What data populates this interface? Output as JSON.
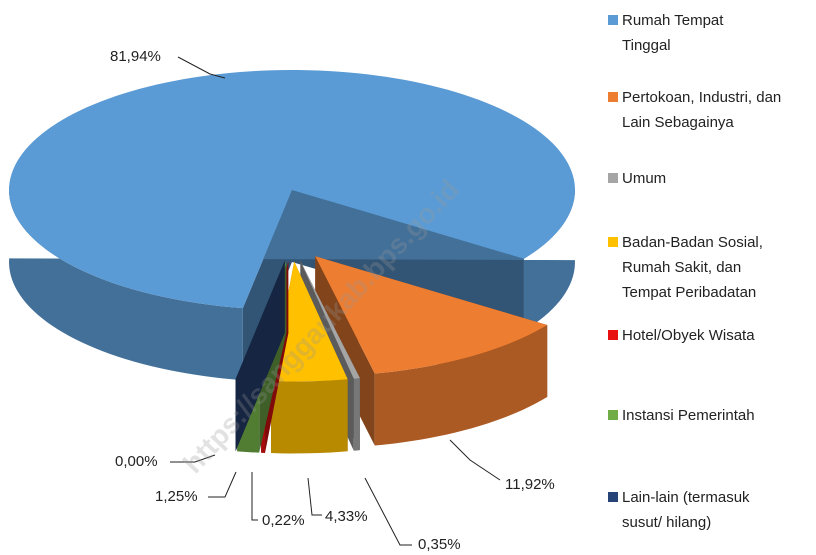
{
  "chart_data": {
    "type": "pie",
    "categories": [
      "Rumah Tempat Tinggal",
      "Pertokoan, Industri, dan Lain Sebagainya",
      "Umum",
      "Badan-Badan Sosial, Rumah Sakit, dan Tempat Peribadatan",
      "Hotel/Obyek Wisata",
      "Instansi Pemerintah",
      "Lain-lain (termasuk susut/ hilang)"
    ],
    "values": [
      81.94,
      11.92,
      0.35,
      4.33,
      0.22,
      1.25,
      0.0
    ],
    "value_labels": [
      "81,94%",
      "11,92%",
      "0,35%",
      "4,33%",
      "0,22%",
      "1,25%",
      "0,00%"
    ],
    "colors": [
      "#5b9bd5",
      "#ed7d31",
      "#a5a5a5",
      "#ffc000",
      "#e81010",
      "#70ad47",
      "#264478"
    ],
    "legend": "right",
    "watermark": "https://sanggaukab.bps.go.id"
  }
}
